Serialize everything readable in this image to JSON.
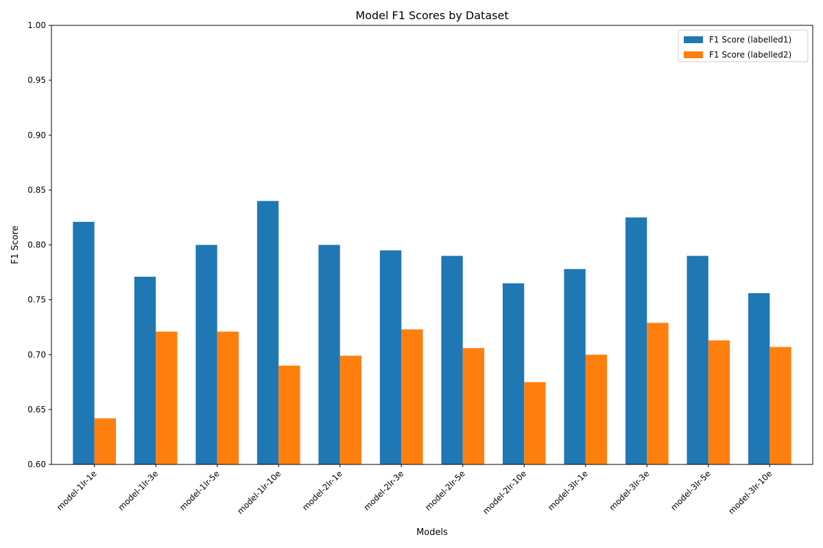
{
  "chart_data": {
    "type": "bar",
    "title": "Model F1 Scores by Dataset",
    "xlabel": "Models",
    "ylabel": "F1 Score",
    "ylim": [
      0.6,
      1.0
    ],
    "yticks": [
      0.6,
      0.65,
      0.7,
      0.75,
      0.8,
      0.85,
      0.9,
      0.95,
      1.0
    ],
    "ytick_labels": [
      "0.60",
      "0.65",
      "0.70",
      "0.75",
      "0.80",
      "0.85",
      "0.90",
      "0.95",
      "1.00"
    ],
    "grid": false,
    "legend_position": "top-right",
    "categories": [
      "model-1lr-1e",
      "model-1lr-3e",
      "model-1lr-5e",
      "model-1lr-10e",
      "model-2lr-1e",
      "model-2lr-3e",
      "model-2lr-5e",
      "model-2lr-10e",
      "model-3lr-1e",
      "model-3lr-3e",
      "model-3lr-5e",
      "model-3lr-10e"
    ],
    "series": [
      {
        "name": "F1 Score (labelled1)",
        "color": "#1f77b4",
        "values": [
          0.821,
          0.771,
          0.8,
          0.84,
          0.8,
          0.795,
          0.79,
          0.765,
          0.778,
          0.825,
          0.79,
          0.756
        ]
      },
      {
        "name": "F1 Score (labelled2)",
        "color": "#ff7f0e",
        "values": [
          0.642,
          0.721,
          0.721,
          0.69,
          0.699,
          0.723,
          0.706,
          0.675,
          0.7,
          0.729,
          0.713,
          0.707
        ]
      }
    ]
  }
}
